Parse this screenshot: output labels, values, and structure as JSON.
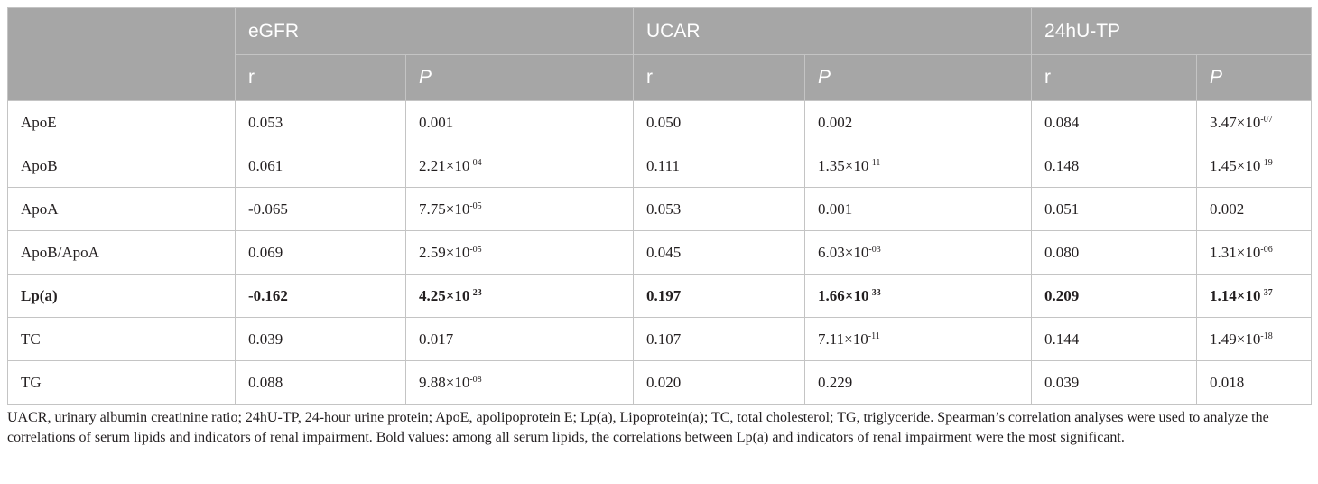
{
  "table": {
    "groups": [
      "eGFR",
      "UCAR",
      "24hU-TP"
    ],
    "subheaders": [
      "r",
      "P",
      "r",
      "P",
      "r",
      "P"
    ],
    "rows": [
      {
        "label": "ApoE",
        "bold": false,
        "cells": [
          {
            "base": "0.053"
          },
          {
            "base": "0.001"
          },
          {
            "base": "0.050"
          },
          {
            "base": "0.002"
          },
          {
            "base": "0.084"
          },
          {
            "base": "3.47×10",
            "exp": "-07"
          }
        ]
      },
      {
        "label": "ApoB",
        "bold": false,
        "cells": [
          {
            "base": "0.061"
          },
          {
            "base": "2.21×10",
            "exp": "-04"
          },
          {
            "base": "0.111"
          },
          {
            "base": "1.35×10",
            "exp": "-11"
          },
          {
            "base": "0.148"
          },
          {
            "base": "1.45×10",
            "exp": "-19"
          }
        ]
      },
      {
        "label": "ApoA",
        "bold": false,
        "cells": [
          {
            "base": "-0.065"
          },
          {
            "base": "7.75×10",
            "exp": "-05"
          },
          {
            "base": "0.053"
          },
          {
            "base": "0.001"
          },
          {
            "base": "0.051"
          },
          {
            "base": "0.002"
          }
        ]
      },
      {
        "label": "ApoB/ApoA",
        "bold": false,
        "cells": [
          {
            "base": "0.069"
          },
          {
            "base": "2.59×10",
            "exp": "-05"
          },
          {
            "base": "0.045"
          },
          {
            "base": "6.03×10",
            "exp": "-03"
          },
          {
            "base": "0.080"
          },
          {
            "base": "1.31×10",
            "exp": "-06"
          }
        ]
      },
      {
        "label": "Lp(a)",
        "bold": true,
        "cells": [
          {
            "base": "-0.162"
          },
          {
            "base": "4.25×10",
            "exp": "-23"
          },
          {
            "base": "0.197"
          },
          {
            "base": "1.66×10",
            "exp": "-33"
          },
          {
            "base": "0.209"
          },
          {
            "base": "1.14×10",
            "exp": "-37"
          }
        ]
      },
      {
        "label": "TC",
        "bold": false,
        "cells": [
          {
            "base": "0.039"
          },
          {
            "base": "0.017"
          },
          {
            "base": "0.107"
          },
          {
            "base": "7.11×10",
            "exp": "-11"
          },
          {
            "base": "0.144"
          },
          {
            "base": "1.49×10",
            "exp": "-18"
          }
        ]
      },
      {
        "label": "TG",
        "bold": false,
        "cells": [
          {
            "base": "0.088"
          },
          {
            "base": "9.88×10",
            "exp": "-08"
          },
          {
            "base": "0.020"
          },
          {
            "base": "0.229"
          },
          {
            "base": "0.039"
          },
          {
            "base": "0.018"
          }
        ]
      }
    ]
  },
  "footnote": "UACR, urinary albumin creatinine ratio; 24hU-TP, 24-hour urine protein; ApoE, apolipoprotein E; Lp(a), Lipoprotein(a); TC, total cholesterol; TG, triglyceride. Spearman’s correlation analyses were used to analyze the correlations of serum lipids and indicators of renal impairment. Bold values: among all serum lipids, the correlations between Lp(a) and indicators of renal impairment were the most significant."
}
